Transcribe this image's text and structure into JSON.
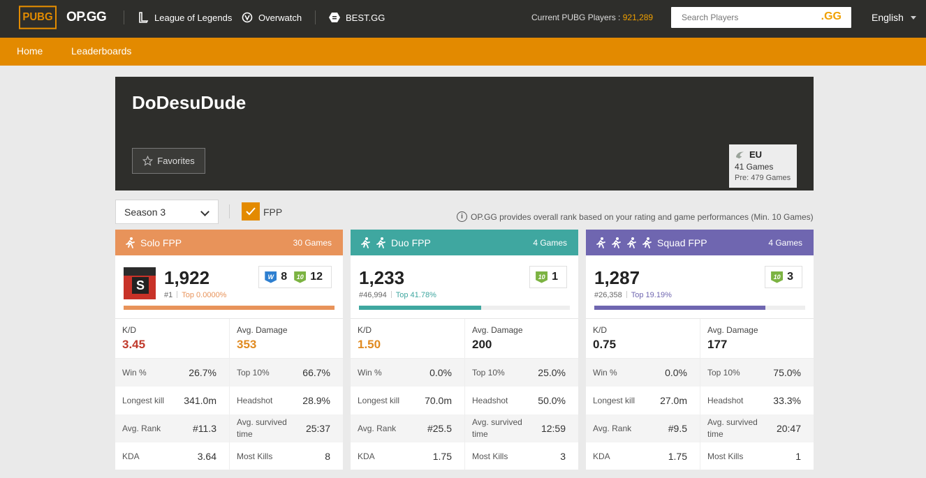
{
  "header": {
    "pubg_logo": "PUBG",
    "opgg_logo": "OP.GG",
    "nav_games": [
      "League of Legends",
      "Overwatch",
      "BEST.GG"
    ],
    "players_label": "Current PUBG Players : ",
    "players_count": "921,289",
    "search_placeholder": "Search Players",
    "search_gg": ".GG",
    "language": "English"
  },
  "subnav": {
    "home": "Home",
    "leaderboards": "Leaderboards"
  },
  "profile": {
    "name": "DoDesuDude",
    "favorites": "Favorites",
    "region": "EU",
    "games": "41 Games",
    "pre_games": "Pre: 479 Games"
  },
  "filters": {
    "season": "Season 3",
    "fpp": "FPP",
    "info": "OP.GG provides overall rank based on your rating and game performances (Min. 10 Games)"
  },
  "colors": {
    "solo": "#e8935a",
    "duo": "#3fa7a0",
    "squad": "#6f66b0",
    "accent": "#e38a00"
  },
  "cards": [
    {
      "title": "Solo FPP",
      "games": "30 Games",
      "rating": "1,922",
      "rank": "#1",
      "top": "Top 0.0000%",
      "badges": [
        {
          "icon": "W",
          "count": "8"
        },
        {
          "icon": "10",
          "count": "12"
        }
      ],
      "progress": 1.0,
      "kd_label": "K/D",
      "kd": "3.45",
      "kd_color": "#c0392b",
      "dmg_label": "Avg. Damage",
      "dmg": "353",
      "dmg_color": "#e08a20",
      "stats": [
        [
          "Win %",
          "26.7%",
          "Top 10%",
          "66.7%"
        ],
        [
          "Longest kill",
          "341.0m",
          "Headshot",
          "28.9%"
        ],
        [
          "Avg. Rank",
          "#11.3",
          "Avg. survived time",
          "25:37"
        ],
        [
          "KDA",
          "3.64",
          "Most Kills",
          "8"
        ]
      ]
    },
    {
      "title": "Duo FPP",
      "games": "4 Games",
      "rating": "1,233",
      "rank": "#46,994",
      "top": "Top 41.78%",
      "badges": [
        {
          "icon": "10",
          "count": "1"
        }
      ],
      "progress": 0.58,
      "kd_label": "K/D",
      "kd": "1.50",
      "kd_color": "#e08a20",
      "dmg_label": "Avg. Damage",
      "dmg": "200",
      "dmg_color": "#222",
      "stats": [
        [
          "Win %",
          "0.0%",
          "Top 10%",
          "25.0%"
        ],
        [
          "Longest kill",
          "70.0m",
          "Headshot",
          "50.0%"
        ],
        [
          "Avg. Rank",
          "#25.5",
          "Avg. survived time",
          "12:59"
        ],
        [
          "KDA",
          "1.75",
          "Most Kills",
          "3"
        ]
      ]
    },
    {
      "title": "Squad FPP",
      "games": "4 Games",
      "rating": "1,287",
      "rank": "#26,358",
      "top": "Top 19.19%",
      "badges": [
        {
          "icon": "10",
          "count": "3"
        }
      ],
      "progress": 0.81,
      "kd_label": "K/D",
      "kd": "0.75",
      "kd_color": "#222",
      "dmg_label": "Avg. Damage",
      "dmg": "177",
      "dmg_color": "#222",
      "stats": [
        [
          "Win %",
          "0.0%",
          "Top 10%",
          "75.0%"
        ],
        [
          "Longest kill",
          "27.0m",
          "Headshot",
          "33.3%"
        ],
        [
          "Avg. Rank",
          "#9.5",
          "Avg. survived time",
          "20:47"
        ],
        [
          "KDA",
          "1.75",
          "Most Kills",
          "1"
        ]
      ]
    }
  ]
}
